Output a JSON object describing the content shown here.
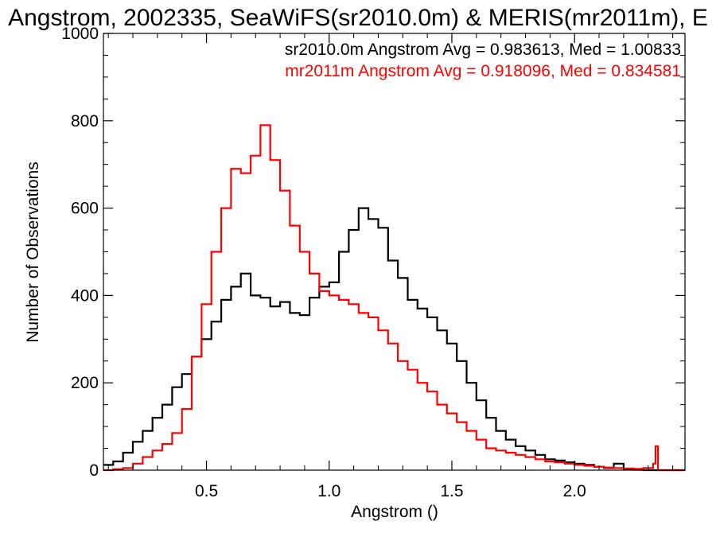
{
  "chart_data": {
    "type": "line",
    "title": "Angstrom, 2002335, SeaWiFS(sr2010.0m) & MERIS(mr2011m), E",
    "xlabel": "Angstrom ()",
    "ylabel": "Number of Observations",
    "xlim": [
      0.08,
      2.45
    ],
    "ylim": [
      0,
      1000
    ],
    "xticks": [
      0.5,
      1.0,
      1.5,
      2.0
    ],
    "xtick_labels": [
      "0.5",
      "1.0",
      "1.5",
      "2.0"
    ],
    "yticks": [
      0,
      200,
      400,
      600,
      800,
      1000
    ],
    "ytick_labels": [
      "0",
      "200",
      "400",
      "600",
      "800",
      "1000"
    ],
    "grid": false,
    "legend": "top-right",
    "annotations": [
      {
        "text": "sr2010.0m Angstrom Avg = 0.983613, Med = 1.00833",
        "color": "#000000"
      },
      {
        "text": "mr2011m Angstrom Avg = 0.918096, Med = 0.834581",
        "color": "#ff0000"
      }
    ],
    "series": [
      {
        "name": "sr2010.0m",
        "color": "#000000",
        "x": [
          0.08,
          0.12,
          0.16,
          0.2,
          0.24,
          0.28,
          0.32,
          0.36,
          0.4,
          0.44,
          0.48,
          0.52,
          0.56,
          0.6,
          0.64,
          0.68,
          0.72,
          0.76,
          0.8,
          0.84,
          0.88,
          0.92,
          0.96,
          1.0,
          1.04,
          1.08,
          1.12,
          1.16,
          1.2,
          1.24,
          1.28,
          1.32,
          1.36,
          1.4,
          1.44,
          1.48,
          1.52,
          1.56,
          1.6,
          1.64,
          1.68,
          1.72,
          1.76,
          1.8,
          1.84,
          1.88,
          1.92,
          1.96,
          2.0,
          2.04,
          2.08,
          2.12,
          2.16,
          2.2,
          2.24,
          2.28,
          2.32,
          2.36,
          2.4,
          2.45
        ],
        "y": [
          12,
          20,
          40,
          65,
          90,
          120,
          150,
          190,
          220,
          260,
          300,
          340,
          390,
          420,
          450,
          400,
          395,
          375,
          385,
          360,
          355,
          395,
          420,
          430,
          500,
          550,
          600,
          575,
          555,
          480,
          440,
          390,
          370,
          350,
          320,
          290,
          250,
          200,
          160,
          120,
          90,
          70,
          55,
          45,
          35,
          25,
          22,
          18,
          15,
          12,
          8,
          5,
          15,
          2,
          1,
          0,
          0,
          0,
          0,
          0
        ]
      },
      {
        "name": "mr2011m",
        "color": "#ff0000",
        "x": [
          0.08,
          0.12,
          0.16,
          0.2,
          0.24,
          0.28,
          0.32,
          0.36,
          0.4,
          0.44,
          0.48,
          0.52,
          0.56,
          0.6,
          0.64,
          0.68,
          0.72,
          0.76,
          0.8,
          0.84,
          0.88,
          0.92,
          0.96,
          1.0,
          1.04,
          1.08,
          1.12,
          1.16,
          1.2,
          1.24,
          1.28,
          1.32,
          1.36,
          1.4,
          1.44,
          1.48,
          1.52,
          1.56,
          1.6,
          1.64,
          1.68,
          1.72,
          1.76,
          1.8,
          1.84,
          1.88,
          1.92,
          1.96,
          2.0,
          2.04,
          2.08,
          2.12,
          2.16,
          2.2,
          2.24,
          2.28,
          2.32,
          2.33,
          2.34,
          2.45
        ],
        "y": [
          0,
          2,
          5,
          15,
          30,
          45,
          60,
          85,
          140,
          260,
          380,
          500,
          600,
          690,
          680,
          720,
          790,
          710,
          640,
          560,
          500,
          450,
          410,
          400,
          390,
          380,
          360,
          350,
          320,
          290,
          250,
          230,
          200,
          180,
          150,
          130,
          110,
          90,
          70,
          50,
          45,
          40,
          35,
          30,
          25,
          20,
          18,
          15,
          12,
          10,
          8,
          6,
          5,
          4,
          3,
          5,
          15,
          55,
          0,
          0
        ]
      }
    ]
  }
}
